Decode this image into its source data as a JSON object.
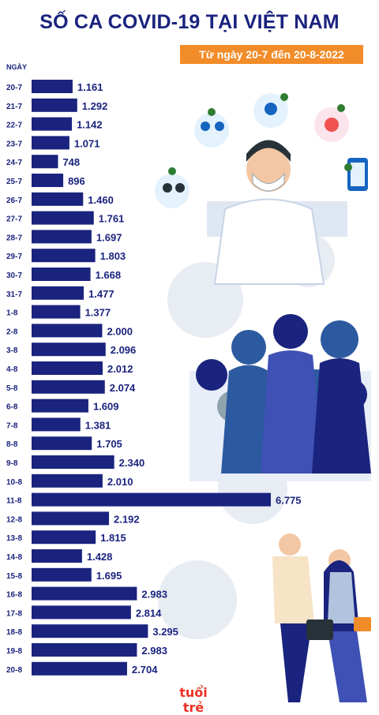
{
  "title": "SỐ CA COVID-19 TẠI VIỆT NAM",
  "subtitle": "Từ ngày 20-7 đến 20-8-2022",
  "logo_text": "tuổi trẻ",
  "chart_data": {
    "type": "bar",
    "orientation": "horizontal",
    "ylabel": "NGÀY",
    "bar_color": "#1a237e",
    "categories": [
      "20-7",
      "21-7",
      "22-7",
      "23-7",
      "24-7",
      "25-7",
      "26-7",
      "27-7",
      "28-7",
      "29-7",
      "30-7",
      "31-7",
      "1-8",
      "2-8",
      "3-8",
      "4-8",
      "5-8",
      "6-8",
      "7-8",
      "8-8",
      "9-8",
      "10-8",
      "11-8",
      "12-8",
      "13-8",
      "14-8",
      "15-8",
      "16-8",
      "17-8",
      "18-8",
      "19-8",
      "20-8"
    ],
    "values": [
      1161,
      1292,
      1142,
      1071,
      748,
      896,
      1460,
      1761,
      1697,
      1803,
      1668,
      1477,
      1377,
      2000,
      2096,
      2012,
      2074,
      1609,
      1381,
      1705,
      2340,
      2010,
      6775,
      2192,
      1815,
      1428,
      1695,
      2983,
      2814,
      3295,
      2983,
      2704
    ],
    "value_labels": [
      "1.161",
      "1.292",
      "1.142",
      "1.071",
      "748",
      "896",
      "1.460",
      "1.761",
      "1.697",
      "1.803",
      "1.668",
      "1.477",
      "1.377",
      "2.000",
      "2.096",
      "2.012",
      "2.074",
      "1.609",
      "1.381",
      "1.705",
      "2.340",
      "2.010",
      "6.775",
      "2.192",
      "1.815",
      "1.428",
      "1.695",
      "2.983",
      "2.814",
      "3.295",
      "2.983",
      "2.704"
    ]
  }
}
